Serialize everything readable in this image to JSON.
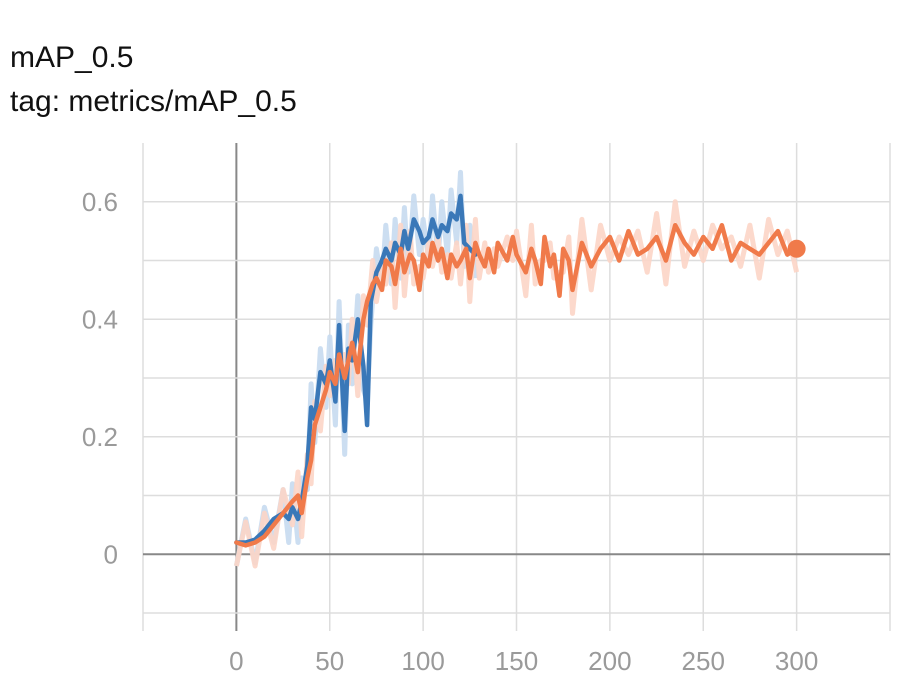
{
  "header": {
    "title": "mAP_0.5",
    "tag": "tag: metrics/mAP_0.5"
  },
  "chart_data": {
    "type": "line",
    "title": "mAP_0.5",
    "subtitle": "tag: metrics/mAP_0.5",
    "xlabel": "",
    "ylabel": "",
    "xlim": [
      -50,
      350
    ],
    "ylim": [
      -0.1,
      0.7
    ],
    "x_ticks": [
      "0",
      "50",
      "100",
      "150",
      "200",
      "250",
      "300"
    ],
    "y_ticks": [
      "0",
      "0.2",
      "0.4",
      "0.6"
    ],
    "grid": true,
    "colors": {
      "series_blue": "#3a78b8",
      "series_orange": "#f07a4a",
      "raw_blue": "#c6daf0",
      "raw_orange": "#fcd5c6",
      "grid": "#dddddd",
      "axis_zero": "#888888"
    },
    "series": [
      {
        "color": "#3a78b8",
        "raw_color": "#c6daf0",
        "x": [
          0,
          5,
          10,
          15,
          20,
          25,
          28,
          30,
          33,
          35,
          38,
          40,
          42,
          45,
          48,
          50,
          53,
          55,
          58,
          60,
          62,
          65,
          68,
          70,
          72,
          75,
          78,
          80,
          83,
          85,
          88,
          90,
          92,
          95,
          98,
          100,
          103,
          105,
          108,
          110,
          113,
          115,
          118,
          120,
          122,
          125,
          128
        ],
        "y": [
          0.02,
          0.02,
          0.025,
          0.04,
          0.06,
          0.07,
          0.06,
          0.08,
          0.06,
          0.09,
          0.15,
          0.25,
          0.23,
          0.31,
          0.29,
          0.33,
          0.26,
          0.39,
          0.21,
          0.35,
          0.33,
          0.4,
          0.32,
          0.22,
          0.43,
          0.48,
          0.5,
          0.52,
          0.5,
          0.53,
          0.51,
          0.55,
          0.52,
          0.57,
          0.55,
          0.53,
          0.54,
          0.57,
          0.54,
          0.56,
          0.55,
          0.58,
          0.57,
          0.61,
          0.53,
          0.52,
          0.51
        ]
      },
      {
        "color": "#f07a4a",
        "raw_color": "#fcd5c6",
        "x": [
          0,
          5,
          10,
          15,
          20,
          25,
          30,
          33,
          35,
          38,
          40,
          42,
          45,
          48,
          50,
          53,
          55,
          58,
          60,
          62,
          65,
          68,
          70,
          73,
          75,
          78,
          80,
          83,
          85,
          88,
          90,
          93,
          95,
          98,
          100,
          103,
          105,
          108,
          110,
          113,
          115,
          118,
          120,
          123,
          125,
          128,
          130,
          133,
          135,
          138,
          140,
          145,
          148,
          150,
          155,
          158,
          160,
          163,
          165,
          168,
          170,
          173,
          175,
          178,
          180,
          185,
          190,
          195,
          200,
          205,
          210,
          215,
          220,
          225,
          230,
          235,
          240,
          245,
          250,
          255,
          260,
          265,
          270,
          275,
          280,
          285,
          290,
          295,
          300
        ],
        "y": [
          0.02,
          0.015,
          0.02,
          0.03,
          0.05,
          0.07,
          0.09,
          0.1,
          0.07,
          0.13,
          0.16,
          0.22,
          0.25,
          0.28,
          0.31,
          0.29,
          0.34,
          0.3,
          0.33,
          0.36,
          0.31,
          0.4,
          0.43,
          0.46,
          0.47,
          0.45,
          0.5,
          0.49,
          0.46,
          0.52,
          0.48,
          0.51,
          0.5,
          0.45,
          0.51,
          0.49,
          0.53,
          0.5,
          0.52,
          0.47,
          0.51,
          0.49,
          0.5,
          0.52,
          0.47,
          0.53,
          0.51,
          0.49,
          0.52,
          0.48,
          0.53,
          0.5,
          0.54,
          0.51,
          0.48,
          0.52,
          0.5,
          0.46,
          0.54,
          0.49,
          0.51,
          0.44,
          0.52,
          0.5,
          0.45,
          0.53,
          0.49,
          0.52,
          0.54,
          0.5,
          0.55,
          0.51,
          0.52,
          0.54,
          0.5,
          0.56,
          0.53,
          0.51,
          0.54,
          0.52,
          0.56,
          0.5,
          0.53,
          0.52,
          0.51,
          0.53,
          0.55,
          0.51,
          0.52
        ]
      }
    ],
    "end_marker": {
      "x": 300,
      "y": 0.52,
      "color": "#f07a4a"
    }
  }
}
